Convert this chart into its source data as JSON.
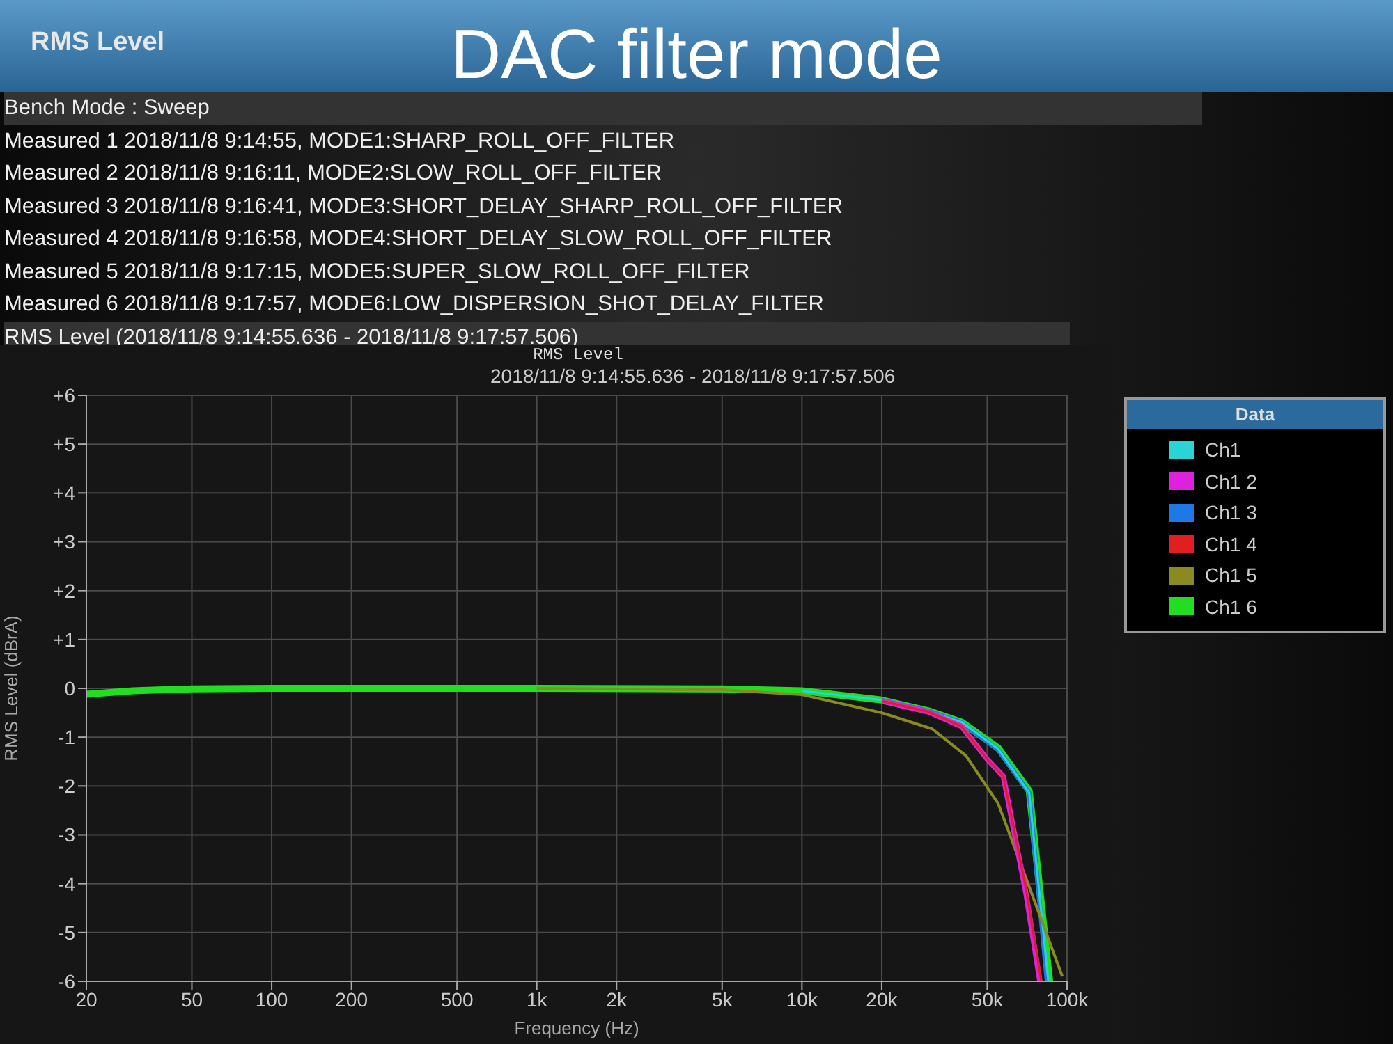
{
  "chart_data": {
    "type": "line",
    "title": "DAC filter mode",
    "subtitle": "2018/11/8 9:14:55.636 - 2018/11/8 9:17:57.506",
    "xlabel": "Frequency (Hz)",
    "ylabel": "RMS Level (dBrA)",
    "legend_title": "Data",
    "legend": "right",
    "grid": true,
    "log": "x",
    "annotations": [
      "RMS Level",
      "Bench Mode : Sweep",
      "Measured 1 2018/11/8 9:14:55, MODE1:SHARP_ROLL_OFF_FILTER",
      "Measured 2 2018/11/8 9:16:11, MODE2:SLOW_ROLL_OFF_FILTER",
      "Measured 3 2018/11/8 9:16:41, MODE3:SHORT_DELAY_SHARP_ROLL_OFF_FILTER",
      "Measured 4 2018/11/8 9:16:58, MODE4:SHORT_DELAY_SLOW_ROLL_OFF_FILTER",
      "Measured 5 2018/11/8 9:17:15, MODE5:SUPER_SLOW_ROLL_OFF_FILTER",
      "Measured 6 2018/11/8 9:17:57, MODE6:LOW_DISPERSION_SHOT_DELAY_FILTER",
      "RMS Level (2018/11/8 9:14:55.636 - 2018/11/8 9:17:57.506)",
      "RMS Level"
    ],
    "xlim": [
      20,
      100000
    ],
    "xticks": [
      20,
      50,
      100,
      200,
      500,
      {
        "value": 1000,
        "label": "1k"
      },
      {
        "value": 2000,
        "label": "2k"
      },
      {
        "value": 5000,
        "label": "5k"
      },
      {
        "value": 10000,
        "label": "10k"
      },
      {
        "value": 20000,
        "label": "20k"
      },
      {
        "value": 50000,
        "label": "50k"
      },
      {
        "value": 100000,
        "label": "100k"
      }
    ],
    "ylim": [
      -6,
      6
    ],
    "yticks": [
      -6,
      -5,
      -4,
      -3,
      -2,
      -1,
      0,
      {
        "value": 1,
        "label": "+1"
      },
      {
        "value": 2,
        "label": "+2"
      },
      {
        "value": 3,
        "label": "+3"
      },
      {
        "value": 4,
        "label": "+4"
      },
      {
        "value": 5,
        "label": "+5"
      },
      {
        "value": 6,
        "label": "+6"
      }
    ],
    "series": [
      {
        "name": "Ch1",
        "color": "#2ad4d4",
        "x": [
          10000,
          20000,
          30000,
          40000,
          55000,
          72000,
          85000
        ],
        "values": [
          -0.05,
          -0.24,
          -0.46,
          -0.69,
          -1.24,
          -2.14,
          -6
        ]
      },
      {
        "name": "Ch1 2",
        "color": "#dd22dd",
        "x": [
          20000,
          30000,
          40000,
          50000,
          57500,
          70000,
          79000
        ],
        "values": [
          -0.26,
          -0.48,
          -0.78,
          -1.45,
          -1.8,
          -4.2,
          -6
        ]
      },
      {
        "name": "Ch1 3",
        "color": "#1e78e6",
        "x": [
          20000,
          30000,
          40000,
          55000,
          72000,
          84000
        ],
        "values": [
          -0.24,
          -0.46,
          -0.7,
          -1.26,
          -2.14,
          -6
        ]
      },
      {
        "name": "Ch1 4",
        "color": "#e02020",
        "x": [
          20000,
          30000,
          40000,
          50000,
          57500,
          70000,
          80000
        ],
        "values": [
          -0.26,
          -0.48,
          -0.78,
          -1.45,
          -1.8,
          -4.1,
          -6
        ]
      },
      {
        "name": "Ch1 5",
        "color": "#8a8a22",
        "x": [
          1000,
          5000,
          10000,
          20000,
          31000,
          41600,
          55000,
          73000,
          96000
        ],
        "values": [
          0,
          -0.03,
          -0.13,
          -0.5,
          -0.83,
          -1.38,
          -2.36,
          -4.15,
          -5.9
        ]
      },
      {
        "name": "Ch1 6",
        "color": "#22dd22",
        "x": [
          20,
          30,
          50,
          100,
          1000,
          5000,
          10000,
          20000,
          30000,
          40000,
          55000,
          72000,
          86000
        ],
        "values": [
          -0.12,
          -0.05,
          -0.01,
          0,
          0,
          -0.01,
          -0.05,
          -0.24,
          -0.46,
          -0.69,
          -1.22,
          -2.1,
          -6
        ]
      }
    ]
  }
}
